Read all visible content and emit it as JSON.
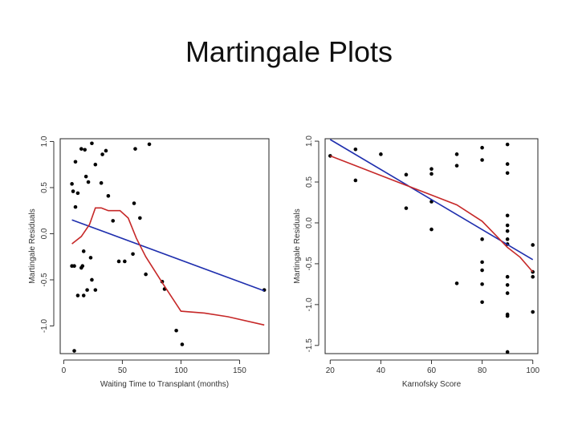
{
  "slide": {
    "title": "Martingale Plots"
  },
  "chart_data": [
    {
      "type": "scatter",
      "title": "",
      "xlabel": "Waiting Time to Transplant (months)",
      "ylabel": "Martingale Residuals",
      "xlim": [
        -3,
        175
      ],
      "ylim": [
        -1.3,
        1.03
      ],
      "xticks": [
        0,
        50,
        100,
        150
      ],
      "xtick_labels": [
        "0",
        "50",
        "100",
        "150"
      ],
      "yticks": [
        -1.0,
        -0.5,
        0.0,
        0.5,
        1.0
      ],
      "ytick_labels": [
        "-1.0",
        "-0.5",
        "0.0",
        "0.5",
        "1.0"
      ],
      "points": [
        [
          7,
          0.54
        ],
        [
          8,
          0.46
        ],
        [
          10,
          0.78
        ],
        [
          15,
          0.92
        ],
        [
          18,
          0.91
        ],
        [
          24,
          0.98
        ],
        [
          36,
          0.9
        ],
        [
          61,
          0.92
        ],
        [
          73,
          0.97
        ],
        [
          12,
          0.44
        ],
        [
          19,
          0.62
        ],
        [
          27,
          0.75
        ],
        [
          33,
          0.86
        ],
        [
          21,
          0.56
        ],
        [
          32,
          0.55
        ],
        [
          38,
          0.41
        ],
        [
          60,
          0.33
        ],
        [
          10,
          0.29
        ],
        [
          42,
          0.14
        ],
        [
          65,
          0.17
        ],
        [
          7,
          -0.35
        ],
        [
          9,
          -0.35
        ],
        [
          16,
          -0.35
        ],
        [
          17,
          -0.19
        ],
        [
          23,
          -0.26
        ],
        [
          47,
          -0.3
        ],
        [
          52,
          -0.3
        ],
        [
          59,
          -0.22
        ],
        [
          70,
          -0.44
        ],
        [
          15,
          -0.37
        ],
        [
          20,
          -0.61
        ],
        [
          24,
          -0.5
        ],
        [
          27,
          -0.61
        ],
        [
          12,
          -0.67
        ],
        [
          17,
          -0.67
        ],
        [
          84,
          -0.52
        ],
        [
          86,
          -0.6
        ],
        [
          96,
          -1.05
        ],
        [
          101,
          -1.2
        ],
        [
          9,
          -1.27
        ],
        [
          171,
          -0.61
        ]
      ],
      "series": [
        {
          "kind": "linear-fit",
          "color": "#1f2fae",
          "x": [
            7,
            171
          ],
          "y": [
            0.15,
            -0.62
          ]
        },
        {
          "kind": "smoother",
          "color": "#c62828",
          "x": [
            7,
            15,
            22,
            27,
            32,
            38,
            42,
            48,
            55,
            62,
            70,
            85,
            100,
            120,
            140,
            171
          ],
          "y": [
            -0.11,
            -0.03,
            0.1,
            0.28,
            0.28,
            0.25,
            0.25,
            0.25,
            0.17,
            -0.05,
            -0.25,
            -0.55,
            -0.84,
            -0.86,
            -0.9,
            -0.99
          ]
        }
      ]
    },
    {
      "type": "scatter",
      "title": "",
      "xlabel": "Karnofsky Score",
      "ylabel": "Martingale Residuals",
      "xlim": [
        18,
        102
      ],
      "ylim": [
        -1.6,
        1.03
      ],
      "xticks": [
        20,
        40,
        60,
        80,
        100
      ],
      "xtick_labels": [
        "20",
        "40",
        "60",
        "80",
        "100"
      ],
      "yticks": [
        -1.5,
        -1.0,
        -0.5,
        0.0,
        0.5,
        1.0
      ],
      "ytick_labels": [
        "-1.5",
        "-1.0",
        "-0.5",
        "0.0",
        "0.5",
        "1.0"
      ],
      "points": [
        [
          20,
          0.82
        ],
        [
          30,
          0.9
        ],
        [
          40,
          0.84
        ],
        [
          30,
          0.52
        ],
        [
          50,
          0.59
        ],
        [
          60,
          0.66
        ],
        [
          60,
          0.6
        ],
        [
          70,
          0.84
        ],
        [
          70,
          0.7
        ],
        [
          80,
          0.92
        ],
        [
          80,
          0.77
        ],
        [
          90,
          0.96
        ],
        [
          90,
          0.72
        ],
        [
          90,
          0.61
        ],
        [
          50,
          0.18
        ],
        [
          60,
          0.26
        ],
        [
          60,
          -0.08
        ],
        [
          70,
          -0.74
        ],
        [
          80,
          -0.2
        ],
        [
          80,
          -0.48
        ],
        [
          80,
          -0.58
        ],
        [
          80,
          -0.97
        ],
        [
          90,
          0.09
        ],
        [
          90,
          -0.03
        ],
        [
          90,
          -0.1
        ],
        [
          90,
          -0.2
        ],
        [
          90,
          -0.26
        ],
        [
          90,
          -0.66
        ],
        [
          90,
          -0.76
        ],
        [
          90,
          -0.86
        ],
        [
          90,
          -1.12
        ],
        [
          90,
          -1.14
        ],
        [
          90,
          -1.58
        ],
        [
          100,
          -0.27
        ],
        [
          100,
          -0.6
        ],
        [
          100,
          -0.66
        ],
        [
          100,
          -1.09
        ],
        [
          80,
          -0.75
        ]
      ],
      "series": [
        {
          "kind": "linear-fit",
          "color": "#1f2fae",
          "x": [
            20,
            100
          ],
          "y": [
            1.02,
            -0.45
          ]
        },
        {
          "kind": "smoother",
          "color": "#c62828",
          "x": [
            20,
            30,
            40,
            50,
            60,
            70,
            80,
            85,
            90,
            95,
            100
          ],
          "y": [
            0.82,
            0.7,
            0.58,
            0.46,
            0.34,
            0.22,
            0.02,
            -0.14,
            -0.3,
            -0.42,
            -0.6
          ]
        }
      ]
    }
  ]
}
